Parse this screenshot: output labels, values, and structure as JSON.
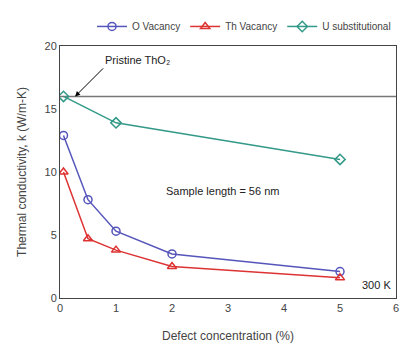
{
  "chart_data": {
    "type": "line",
    "xlabel": "Defect concentration (%)",
    "ylabel": "Thermal conductivity, k (W/m-K)",
    "xlim": [
      0,
      6
    ],
    "ylim": [
      0,
      20
    ],
    "xticks": [
      0,
      1,
      2,
      3,
      4,
      5,
      6
    ],
    "yticks": [
      0,
      5,
      10,
      15,
      20
    ],
    "grid": false,
    "legend": "upper right",
    "series": [
      {
        "name": "O Vacancy",
        "color": "#5555bb",
        "marker": "circle",
        "x": [
          0.0625,
          0.5,
          1.0,
          2.0,
          5.0
        ],
        "values": [
          12.9,
          7.8,
          5.3,
          3.5,
          2.1
        ]
      },
      {
        "name": "Th Vacancy",
        "color": "#dd3333",
        "marker": "triangle",
        "x": [
          0.0625,
          0.5,
          1.0,
          2.0,
          5.0
        ],
        "values": [
          10.0,
          4.7,
          3.8,
          2.5,
          1.6
        ]
      },
      {
        "name": "U substitutional",
        "color": "#339988",
        "marker": "diamond",
        "x": [
          0.0625,
          1.0,
          5.0
        ],
        "values": [
          16.0,
          13.9,
          11.0
        ]
      }
    ],
    "reference_line": {
      "value": 16.0,
      "color": "#777777",
      "label": "Pristine ThO₂"
    },
    "annotations": [
      "Sample length = 56 nm",
      "300 K"
    ]
  }
}
